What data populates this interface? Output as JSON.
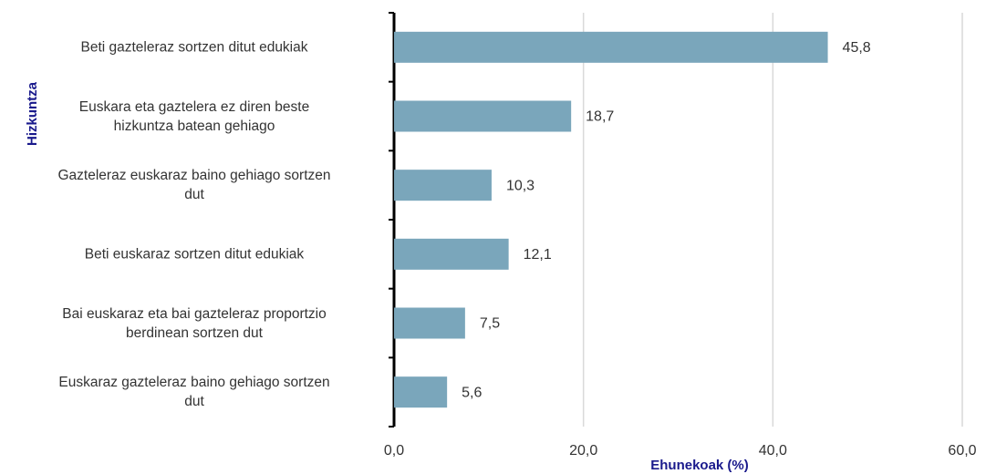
{
  "chart_data": {
    "type": "barh",
    "categories": [
      "Beti gazteleraz sortzen ditut edukiak",
      "Euskara eta gaztelera ez diren beste\nhizkuntza batean gehiago",
      "Gazteleraz euskaraz baino gehiago sortzen\ndut",
      "Beti euskaraz sortzen ditut edukiak",
      "Bai euskaraz eta bai gazteleraz proportzio\nberdinean sortzen dut",
      "Euskaraz gazteleraz baino gehiago sortzen\ndut"
    ],
    "values": [
      45.8,
      18.7,
      10.3,
      12.1,
      7.5,
      5.6
    ],
    "value_labels": [
      "45,8",
      "18,7",
      "10,3",
      "12,1",
      "7,5",
      "5,6"
    ],
    "color": "#7aa6bb",
    "xlim": [
      0,
      60
    ],
    "xticks": [
      {
        "value": 0,
        "label": "0,0"
      },
      {
        "value": 20,
        "label": "20,0"
      },
      {
        "value": 40,
        "label": "40,0"
      },
      {
        "value": 60,
        "label": "60,0"
      }
    ],
    "xlabel": "Ehunekoak (%)",
    "ylabel": "Hizkuntza",
    "grid": true
  }
}
